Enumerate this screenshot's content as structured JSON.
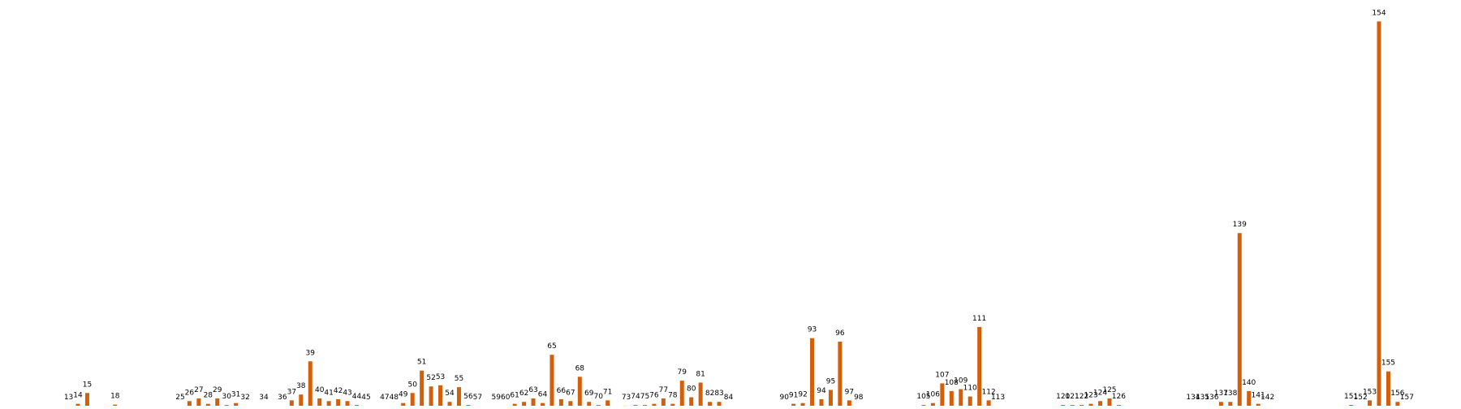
{
  "chart_data": {
    "type": "bar",
    "bar_color": "#d35f0a",
    "data_labels": "category labels printed above each bar",
    "axes_visible": false,
    "grid": false,
    "ylim": [
      0,
      100
    ],
    "bars": [
      {
        "label": "13",
        "x": 13,
        "value": 0
      },
      {
        "label": "14",
        "x": 14,
        "value": 0.5
      },
      {
        "label": "15",
        "x": 15,
        "value": 3.3
      },
      {
        "label": "18",
        "x": 18,
        "value": 0.3
      },
      {
        "label": "25",
        "x": 25,
        "value": 0
      },
      {
        "label": "26",
        "x": 26,
        "value": 1.2
      },
      {
        "label": "27",
        "x": 27,
        "value": 1.9
      },
      {
        "label": "28",
        "x": 28,
        "value": 0.5
      },
      {
        "label": "29",
        "x": 29,
        "value": 1.9
      },
      {
        "label": "30",
        "x": 30,
        "value": 0.2
      },
      {
        "label": "31",
        "x": 31,
        "value": 0.7
      },
      {
        "label": "32",
        "x": 32,
        "value": 0
      },
      {
        "label": "34",
        "x": 34,
        "value": 0
      },
      {
        "label": "36",
        "x": 36,
        "value": 0
      },
      {
        "label": "37",
        "x": 37,
        "value": 1.4
      },
      {
        "label": "38",
        "x": 38,
        "value": 2.9
      },
      {
        "label": "39",
        "x": 39,
        "value": 11.5
      },
      {
        "label": "40",
        "x": 40,
        "value": 1.9
      },
      {
        "label": "41",
        "x": 41,
        "value": 1.2
      },
      {
        "label": "42",
        "x": 42,
        "value": 1.7
      },
      {
        "label": "43",
        "x": 43,
        "value": 1.2
      },
      {
        "label": "44",
        "x": 44,
        "value": 0.2
      },
      {
        "label": "45",
        "x": 45,
        "value": 0
      },
      {
        "label": "47",
        "x": 47,
        "value": 0
      },
      {
        "label": "48",
        "x": 48,
        "value": 0
      },
      {
        "label": "49",
        "x": 49,
        "value": 0.7
      },
      {
        "label": "50",
        "x": 50,
        "value": 3.3
      },
      {
        "label": "51",
        "x": 51,
        "value": 9.1
      },
      {
        "label": "52",
        "x": 52,
        "value": 5.0
      },
      {
        "label": "53",
        "x": 53,
        "value": 5.3
      },
      {
        "label": "54",
        "x": 54,
        "value": 1.0
      },
      {
        "label": "55",
        "x": 55,
        "value": 4.8
      },
      {
        "label": "56",
        "x": 56,
        "value": 0.2
      },
      {
        "label": "57",
        "x": 57,
        "value": 0
      },
      {
        "label": "59",
        "x": 59,
        "value": 0
      },
      {
        "label": "60",
        "x": 60,
        "value": 0
      },
      {
        "label": "61",
        "x": 61,
        "value": 0.5
      },
      {
        "label": "62",
        "x": 62,
        "value": 1.0
      },
      {
        "label": "63",
        "x": 63,
        "value": 1.9
      },
      {
        "label": "64",
        "x": 64,
        "value": 0.7
      },
      {
        "label": "65",
        "x": 65,
        "value": 13.2
      },
      {
        "label": "66",
        "x": 66,
        "value": 1.7
      },
      {
        "label": "67",
        "x": 67,
        "value": 1.2
      },
      {
        "label": "68",
        "x": 68,
        "value": 7.5
      },
      {
        "label": "69",
        "x": 69,
        "value": 1.0
      },
      {
        "label": "70",
        "x": 70,
        "value": 0.2
      },
      {
        "label": "71",
        "x": 71,
        "value": 1.4
      },
      {
        "label": "73",
        "x": 73,
        "value": 0
      },
      {
        "label": "74",
        "x": 74,
        "value": 0.2
      },
      {
        "label": "75",
        "x": 75,
        "value": 0.2
      },
      {
        "label": "76",
        "x": 76,
        "value": 0.5
      },
      {
        "label": "77",
        "x": 77,
        "value": 1.9
      },
      {
        "label": "78",
        "x": 78,
        "value": 0.5
      },
      {
        "label": "79",
        "x": 79,
        "value": 6.5
      },
      {
        "label": "80",
        "x": 80,
        "value": 2.2
      },
      {
        "label": "81",
        "x": 81,
        "value": 6.0
      },
      {
        "label": "82",
        "x": 82,
        "value": 1.0
      },
      {
        "label": "83",
        "x": 83,
        "value": 1.0
      },
      {
        "label": "84",
        "x": 84,
        "value": 0
      },
      {
        "label": "90",
        "x": 90,
        "value": 0
      },
      {
        "label": "91",
        "x": 91,
        "value": 0.5
      },
      {
        "label": "92",
        "x": 92,
        "value": 0.7
      },
      {
        "label": "93",
        "x": 93,
        "value": 17.5
      },
      {
        "label": "94",
        "x": 94,
        "value": 1.7
      },
      {
        "label": "95",
        "x": 95,
        "value": 4.1
      },
      {
        "label": "96",
        "x": 96,
        "value": 16.6
      },
      {
        "label": "97",
        "x": 97,
        "value": 1.4
      },
      {
        "label": "98",
        "x": 98,
        "value": 0
      },
      {
        "label": "105",
        "x": 105,
        "value": 0.2
      },
      {
        "label": "106",
        "x": 106,
        "value": 0.7
      },
      {
        "label": "107",
        "x": 107,
        "value": 5.8
      },
      {
        "label": "108",
        "x": 108,
        "value": 3.8
      },
      {
        "label": "109",
        "x": 109,
        "value": 4.3
      },
      {
        "label": "110",
        "x": 110,
        "value": 2.4
      },
      {
        "label": "111",
        "x": 111,
        "value": 20.4
      },
      {
        "label": "112",
        "x": 112,
        "value": 1.4
      },
      {
        "label": "113",
        "x": 113,
        "value": 0
      },
      {
        "label": "120",
        "x": 120,
        "value": 0.2
      },
      {
        "label": "121",
        "x": 121,
        "value": 0.2
      },
      {
        "label": "122",
        "x": 122,
        "value": 0.2
      },
      {
        "label": "123",
        "x": 123,
        "value": 0.5
      },
      {
        "label": "124",
        "x": 124,
        "value": 1.2
      },
      {
        "label": "125",
        "x": 125,
        "value": 1.9
      },
      {
        "label": "126",
        "x": 126,
        "value": 0.2
      },
      {
        "label": "134",
        "x": 134,
        "value": 0
      },
      {
        "label": "135",
        "x": 135,
        "value": 0
      },
      {
        "label": "136",
        "x": 136,
        "value": 0
      },
      {
        "label": "137",
        "x": 137,
        "value": 1.0
      },
      {
        "label": "138",
        "x": 138,
        "value": 1.0
      },
      {
        "label": "139",
        "x": 139,
        "value": 44.7
      },
      {
        "label": "140",
        "x": 140,
        "value": 3.8
      },
      {
        "label": "141",
        "x": 141,
        "value": 0.5
      },
      {
        "label": "142",
        "x": 142,
        "value": 0
      },
      {
        "label": "151",
        "x": 151,
        "value": 0.2
      },
      {
        "label": "152",
        "x": 152,
        "value": 0
      },
      {
        "label": "153",
        "x": 153,
        "value": 1.4
      },
      {
        "label": "154",
        "x": 154,
        "value": 99.5
      },
      {
        "label": "155",
        "x": 155,
        "value": 8.9
      },
      {
        "label": "156",
        "x": 156,
        "value": 1.0
      },
      {
        "label": "157",
        "x": 157,
        "value": 0
      }
    ]
  }
}
